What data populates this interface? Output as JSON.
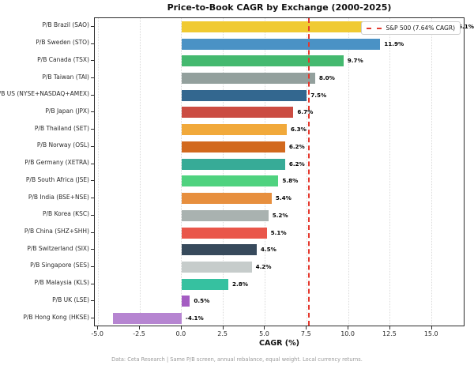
{
  "title": "Price-to-Book CAGR by Exchange (2000-2025)",
  "footer": "Data: Ceta Research | Same P/B screen, annual rebalance, equal weight. Local currency returns.",
  "legend": {
    "label": "S&P 500 (7.64% CAGR)",
    "line_color": "#e5392e"
  },
  "chart_data": {
    "type": "bar",
    "orientation": "horizontal",
    "title": "Price-to-Book CAGR by Exchange (2000-2025)",
    "xlabel": "CAGR (%)",
    "ylabel": "",
    "xlim": [
      -5.2,
      17.0
    ],
    "grid": "vertical-dotted",
    "legend_position": "upper right",
    "xticks": [
      -5.0,
      -2.5,
      0.0,
      2.5,
      5.0,
      7.5,
      10.0,
      12.5,
      15.0
    ],
    "xtick_labels": [
      "-5.0",
      "-2.5",
      "0.0",
      "2.5",
      "5.0",
      "7.5",
      "10.0",
      "12.5",
      "15.0"
    ],
    "reference_line": {
      "value": 7.64,
      "label": "S&P 500 (7.64% CAGR)",
      "color": "#e5392e",
      "style": "dashed"
    },
    "categories": [
      "P/B Brazil (SAO)",
      "P/B Sweden (STO)",
      "P/B Canada (TSX)",
      "P/B Taiwan (TAI)",
      "P/B US (NYSE+NASDAQ+AMEX)",
      "P/B Japan (JPX)",
      "P/B Thailand (SET)",
      "P/B Norway (OSL)",
      "P/B Germany (XETRA)",
      "P/B South Africa (JSE)",
      "P/B India (BSE+NSE)",
      "P/B Korea (KSC)",
      "P/B China (SHZ+SHH)",
      "P/B Switzerland (SIX)",
      "P/B Singapore (SES)",
      "P/B Malaysia (KLS)",
      "P/B UK (LSE)",
      "P/B Hong Kong (HKSE)"
    ],
    "values": [
      16.1,
      11.9,
      9.7,
      8.0,
      7.5,
      6.7,
      6.3,
      6.2,
      6.2,
      5.8,
      5.4,
      5.2,
      5.1,
      4.5,
      4.2,
      2.8,
      0.5,
      -4.1
    ],
    "value_labels": [
      "16.1%",
      "11.9%",
      "9.7%",
      "8.0%",
      "7.5%",
      "6.7%",
      "6.3%",
      "6.2%",
      "6.2%",
      "5.8%",
      "5.4%",
      "5.2%",
      "5.1%",
      "4.5%",
      "4.2%",
      "2.8%",
      "0.5%",
      "-4.1%"
    ],
    "bar_colors": [
      "#f0ca32",
      "#4a92c5",
      "#44b96f",
      "#93a09d",
      "#33678f",
      "#cb4c42",
      "#f1a93b",
      "#d2691e",
      "#37ab97",
      "#4fd27f",
      "#e78f3e",
      "#a9b2b0",
      "#e9564a",
      "#374a5c",
      "#c6cccb",
      "#36c1a0",
      "#a45cc2",
      "#b685d1"
    ]
  }
}
